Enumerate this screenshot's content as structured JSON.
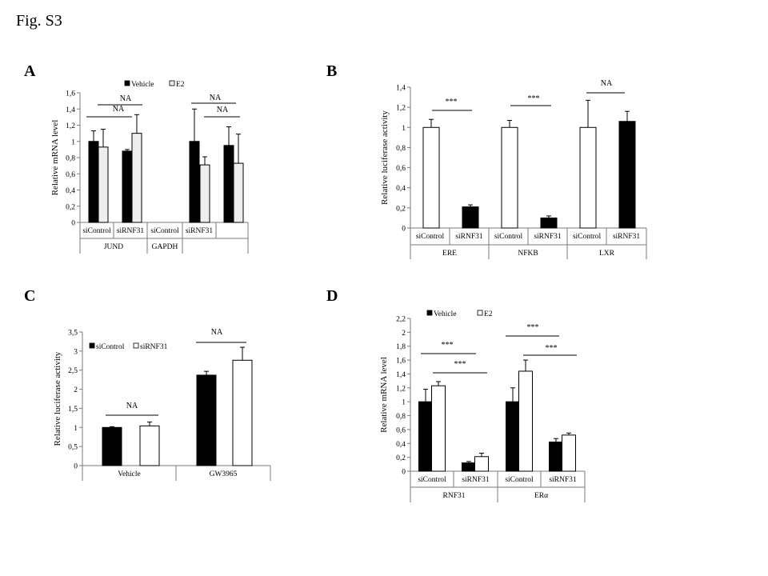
{
  "figure_title": "Fig. S3",
  "colors": {
    "vehicle": "#000000",
    "e2_A": "#eeeeee",
    "e2_D": "#ffffff",
    "sicontrol": "#ffffff",
    "sirnf31": "#000000"
  },
  "chart_data": [
    {
      "panel": "A",
      "type": "bar",
      "ylabel": "Relative mRNA level",
      "ylim": [
        0,
        1.6
      ],
      "yticks": [
        "0",
        "0,2",
        "0,4",
        "0,6",
        "0,8",
        "1",
        "1,2",
        "1,4",
        "1,6"
      ],
      "legend": [
        "Vehicle",
        "E2"
      ],
      "legend_position": "top",
      "categories": [
        "siControl",
        "siRNF31",
        "siControl",
        "siRNF31"
      ],
      "groups": [
        "JUND",
        "GAPDH"
      ],
      "series": [
        {
          "name": "Vehicle",
          "values": [
            1.0,
            0.88,
            1.0,
            0.95
          ],
          "errors": [
            0.13,
            0.02,
            0.4,
            0.23
          ]
        },
        {
          "name": "E2",
          "values": [
            0.93,
            1.1,
            0.71,
            0.73
          ],
          "errors": [
            0.22,
            0.23,
            0.1,
            0.36
          ]
        }
      ],
      "annotations": [
        "NA",
        "NA",
        "NA",
        "NA"
      ]
    },
    {
      "panel": "B",
      "type": "bar",
      "ylabel": "Relative luciferase activity",
      "ylim": [
        0,
        1.4
      ],
      "yticks": [
        "0",
        "0,2",
        "0,4",
        "0,6",
        "0,8",
        "1",
        "1,2",
        "1,4"
      ],
      "categories": [
        "siControl",
        "siRNF31",
        "siControl",
        "siRNF31",
        "siControl",
        "siRNF31"
      ],
      "groups": [
        "ERE",
        "NFKB",
        "LXR"
      ],
      "series": [
        {
          "name": "",
          "values": [
            1.0,
            0.21,
            1.0,
            0.1,
            1.0,
            1.06
          ],
          "errors": [
            0.08,
            0.02,
            0.07,
            0.02,
            0.27,
            0.1
          ]
        }
      ],
      "annotations": [
        "***",
        "***",
        "NA"
      ]
    },
    {
      "panel": "C",
      "type": "bar",
      "ylabel": "Relative luciferase activity",
      "ylim": [
        0,
        3.5
      ],
      "yticks": [
        "0",
        "0,5",
        "1",
        "1,5",
        "2",
        "2,5",
        "3",
        "3,5"
      ],
      "legend": [
        "siControl",
        "siRNF31"
      ],
      "legend_position": "top-left",
      "categories": [
        "Vehicle",
        "GW3965"
      ],
      "series": [
        {
          "name": "siControl",
          "values": [
            1.0,
            2.37
          ],
          "errors": [
            0.02,
            0.1
          ]
        },
        {
          "name": "siRNF31",
          "values": [
            1.04,
            2.76
          ],
          "errors": [
            0.1,
            0.34
          ]
        }
      ],
      "annotations": [
        "NA",
        "NA"
      ]
    },
    {
      "panel": "D",
      "type": "bar",
      "ylabel": "Relative mRNA level",
      "ylim": [
        0,
        2.2
      ],
      "yticks": [
        "0",
        "0,2",
        "0,4",
        "0,6",
        "0,8",
        "1",
        "1,2",
        "1,4",
        "1,6",
        "1,8",
        "2",
        "2,2"
      ],
      "legend": [
        "Vehicle",
        "E2"
      ],
      "legend_position": "top-left",
      "categories": [
        "siControl",
        "siRNF31",
        "siControl",
        "siRNF31"
      ],
      "groups": [
        "RNF31",
        "ERα"
      ],
      "series": [
        {
          "name": "Vehicle",
          "values": [
            1.0,
            0.12,
            1.0,
            0.42
          ],
          "errors": [
            0.18,
            0.02,
            0.2,
            0.05
          ]
        },
        {
          "name": "E2",
          "values": [
            1.23,
            0.21,
            1.44,
            0.52
          ],
          "errors": [
            0.06,
            0.05,
            0.16,
            0.03
          ]
        }
      ],
      "annotations": [
        "***",
        "***",
        "***",
        "***"
      ]
    }
  ]
}
